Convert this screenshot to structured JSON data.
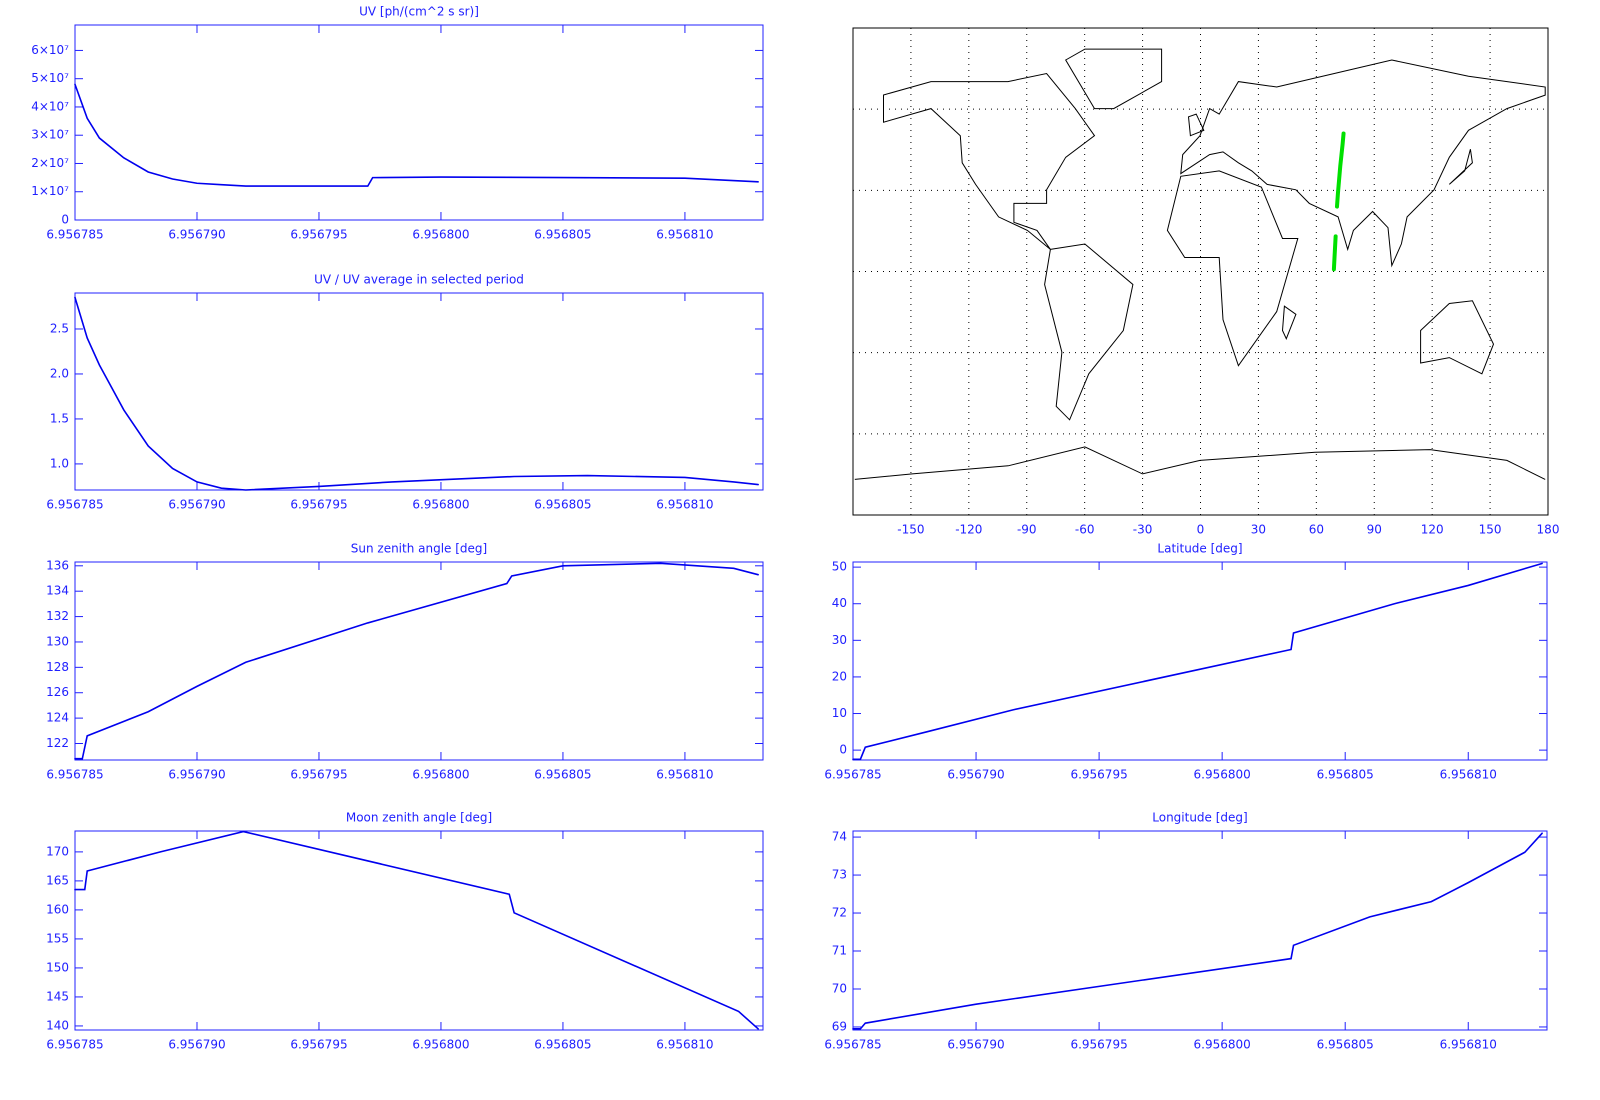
{
  "chart_data": [
    {
      "type": "line",
      "title": "UV [ph/(cm^2 s sr)]",
      "x": [
        6.956785,
        6.9567855,
        6.956786,
        6.956787,
        6.956788,
        6.956789,
        6.95679,
        6.956791,
        6.956792,
        6.956797,
        6.9567972,
        6.9568,
        6.956805,
        6.95681,
        6.956813
      ],
      "series": [
        {
          "color": "#0000ee",
          "values": [
            48000000,
            36000000,
            29000000,
            22000000,
            17000000,
            14500000,
            13000000,
            12500000,
            12000000,
            12000000,
            15000000,
            15200000,
            15000000,
            14800000,
            13500000
          ]
        }
      ],
      "xlim": [
        6.956785,
        6.9568132
      ],
      "ylim": [
        0,
        69000000
      ],
      "xticks": [
        6.956785,
        {
          "value": 6.95679,
          "label": "6.956790"
        },
        6.956795,
        {
          "value": 6.9568,
          "label": "6.956800"
        },
        6.956805,
        {
          "value": 6.95681,
          "label": "6.956810"
        }
      ],
      "yticks": [
        0,
        {
          "value": 10000000,
          "label": "1×10⁷"
        },
        {
          "value": 20000000,
          "label": "2×10⁷"
        },
        {
          "value": 30000000,
          "label": "3×10⁷"
        },
        {
          "value": 40000000,
          "label": "4×10⁷"
        },
        {
          "value": 50000000,
          "label": "5×10⁷"
        },
        {
          "value": 60000000,
          "label": "6×10⁷"
        }
      ]
    },
    {
      "type": "line",
      "title": "UV / UV average in selected period",
      "x": [
        6.956785,
        6.9567855,
        6.956786,
        6.956787,
        6.956788,
        6.956789,
        6.95679,
        6.956791,
        6.956792,
        6.956795,
        6.956798,
        6.956803,
        6.956806,
        6.95681,
        6.956812,
        6.956813
      ],
      "series": [
        {
          "color": "#0000ee",
          "values": [
            2.85,
            2.4,
            2.1,
            1.6,
            1.2,
            0.95,
            0.8,
            0.73,
            0.71,
            0.75,
            0.8,
            0.86,
            0.87,
            0.85,
            0.8,
            0.77
          ]
        }
      ],
      "xlim": [
        6.956785,
        6.9568132
      ],
      "ylim": [
        0.71,
        2.9
      ],
      "xticks": [
        6.956785,
        {
          "value": 6.95679,
          "label": "6.956790"
        },
        6.956795,
        {
          "value": 6.9568,
          "label": "6.956800"
        },
        6.956805,
        {
          "value": 6.95681,
          "label": "6.956810"
        }
      ],
      "yticks": [
        {
          "value": 1,
          "label": "1.0"
        },
        1.5,
        {
          "value": 2,
          "label": "2.0"
        },
        2.5
      ]
    },
    {
      "type": "map",
      "x": [
        69.1,
        69.4,
        69.7,
        70,
        null,
        70.7,
        71.2,
        71.8,
        72.4,
        73,
        73.6,
        74.1
      ],
      "series": [
        {
          "color": "#00e000",
          "values": [
            0.8,
            5,
            9,
            13,
            null,
            24,
            29,
            34,
            39,
            43,
            47,
            51
          ]
        }
      ],
      "xlim": [
        -180,
        180
      ],
      "ylim": [
        -90,
        90
      ],
      "xticks": [
        -150,
        -120,
        -90,
        -60,
        -30,
        0,
        30,
        60,
        90,
        120,
        150,
        180
      ],
      "yticks": [
        -60,
        -30,
        0,
        30,
        60
      ],
      "grid": true
    },
    {
      "type": "line",
      "title": "Sun zenith angle [deg]",
      "x": [
        6.956785,
        6.9567853,
        6.9567855,
        6.956788,
        6.95679,
        6.956792,
        6.956797,
        6.956802700000001,
        6.9568029,
        6.956805,
        6.956809,
        6.956812,
        6.956813
      ],
      "series": [
        {
          "color": "#0000ee",
          "values": [
            120.8,
            120.8,
            122.6,
            124.5,
            126.5,
            128.4,
            131.5,
            134.6,
            135.2,
            136,
            136.2,
            135.8,
            135.3
          ]
        }
      ],
      "xlim": [
        6.956785,
        6.9568132
      ],
      "ylim": [
        120.7,
        136.3
      ],
      "xticks": [
        6.956785,
        {
          "value": 6.95679,
          "label": "6.956790"
        },
        6.956795,
        {
          "value": 6.9568,
          "label": "6.956800"
        },
        6.956805,
        {
          "value": 6.95681,
          "label": "6.956810"
        }
      ],
      "yticks": [
        122,
        124,
        126,
        128,
        130,
        132,
        134,
        136
      ]
    },
    {
      "type": "line",
      "title": "Latitude [deg]",
      "x": [
        6.956785,
        6.9567853,
        6.9567855,
        6.956788,
        6.9567915,
        6.9568028,
        6.9568029,
        6.956807,
        6.95681,
        6.956813
      ],
      "series": [
        {
          "color": "#0000ee",
          "values": [
            -2.5,
            -2.5,
            0.8,
            5,
            11,
            27.5,
            32,
            40,
            45,
            51
          ]
        }
      ],
      "xlim": [
        6.956785,
        6.9568132
      ],
      "ylim": [
        -2.7,
        51.4
      ],
      "xticks": [
        6.956785,
        {
          "value": 6.95679,
          "label": "6.956790"
        },
        6.956795,
        {
          "value": 6.9568,
          "label": "6.956800"
        },
        6.956805,
        {
          "value": 6.95681,
          "label": "6.956810"
        }
      ],
      "yticks": [
        0,
        10,
        20,
        30,
        40,
        50
      ]
    },
    {
      "type": "line",
      "title": "Moon zenith angle [deg]",
      "x": [
        6.956785,
        6.9567854,
        6.9567855,
        6.9567885,
        6.9567919,
        6.9568028,
        6.956803,
        6.9568122,
        6.956813
      ],
      "series": [
        {
          "color": "#0000ee",
          "values": [
            163.5,
            163.5,
            166.7,
            170,
            173.5,
            162.7,
            159.5,
            142.5,
            139.5
          ]
        }
      ],
      "xlim": [
        6.956785,
        6.9568132
      ],
      "ylim": [
        139.3,
        173.6
      ],
      "xticks": [
        6.956785,
        {
          "value": 6.95679,
          "label": "6.956790"
        },
        6.956795,
        {
          "value": 6.9568,
          "label": "6.956800"
        },
        6.956805,
        {
          "value": 6.95681,
          "label": "6.956810"
        }
      ],
      "yticks": [
        140,
        145,
        150,
        155,
        160,
        165,
        170
      ]
    },
    {
      "type": "line",
      "title": "Longitude [deg]",
      "x": [
        6.956785,
        6.9567853,
        6.9567855,
        6.95679,
        6.9568028,
        6.9568029,
        6.956806,
        6.9568085,
        6.95681,
        6.9568123,
        6.956813
      ],
      "series": [
        {
          "color": "#0000ee",
          "values": [
            68.95,
            68.95,
            69.1,
            69.6,
            70.8,
            71.15,
            71.9,
            72.3,
            72.8,
            73.6,
            74.1
          ]
        }
      ],
      "xlim": [
        6.956785,
        6.9568132
      ],
      "ylim": [
        68.92,
        74.16
      ],
      "xticks": [
        6.956785,
        {
          "value": 6.95679,
          "label": "6.956790"
        },
        6.956795,
        {
          "value": 6.9568,
          "label": "6.956800"
        },
        6.956805,
        {
          "value": 6.95681,
          "label": "6.956810"
        }
      ],
      "yticks": [
        69,
        70,
        71,
        72,
        73,
        74
      ]
    }
  ]
}
